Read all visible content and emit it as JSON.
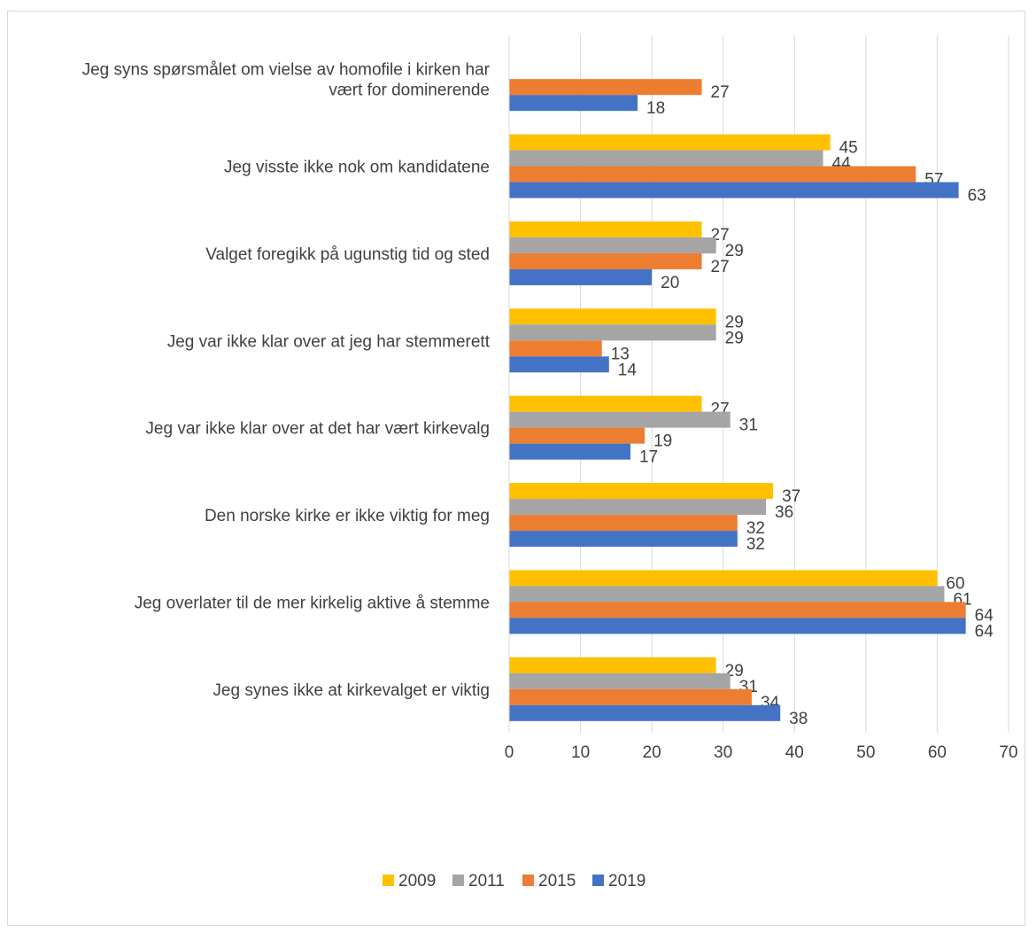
{
  "chart_data": {
    "type": "bar",
    "orientation": "horizontal",
    "categories": [
      [
        "Jeg syns spørsmålet om vielse av homofile i kirken har",
        "vært for dominerende"
      ],
      [
        "Jeg visste ikke nok om kandidatene"
      ],
      [
        "Valget foregikk på ugunstig tid og sted"
      ],
      [
        "Jeg var ikke klar over at jeg har stemmerett"
      ],
      [
        "Jeg var ikke klar over at det har vært kirkevalg"
      ],
      [
        "Den norske kirke er ikke viktig for meg"
      ],
      [
        "Jeg overlater til de mer kirkelig aktive å stemme"
      ],
      [
        "Jeg synes ikke at kirkevalget er viktig"
      ]
    ],
    "series": [
      {
        "name": "2009",
        "color": "#FFC000",
        "values": [
          null,
          45,
          27,
          29,
          27,
          37,
          60,
          29
        ]
      },
      {
        "name": "2011",
        "color": "#A5A5A5",
        "values": [
          null,
          44,
          29,
          29,
          31,
          36,
          61,
          31
        ]
      },
      {
        "name": "2015",
        "color": "#ED7D31",
        "values": [
          27,
          57,
          27,
          13,
          19,
          32,
          64,
          34
        ]
      },
      {
        "name": "2019",
        "color": "#4472C4",
        "values": [
          18,
          63,
          20,
          14,
          17,
          32,
          64,
          38
        ]
      }
    ],
    "xlim": [
      0,
      70
    ],
    "xticks": [
      0,
      10,
      20,
      30,
      40,
      50,
      60,
      70
    ],
    "grid": true,
    "legend": "bottom",
    "title": "",
    "xlabel": "",
    "ylabel": ""
  }
}
